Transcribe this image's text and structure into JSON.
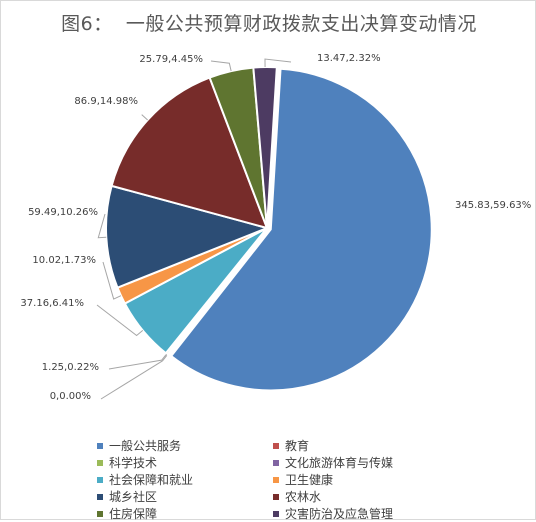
{
  "chart_data": {
    "type": "pie",
    "title": "图6：  一般公共预算财政拨款支出决算变动情况",
    "series": [
      {
        "name": "一般公共服务",
        "value": 345.83,
        "percent": "59.63%",
        "label": "345.83,59.63%",
        "color": "#4f81bd"
      },
      {
        "name": "教育",
        "value": 0,
        "percent": "0.00%",
        "label": "0,0.00%",
        "color": "#c0504d"
      },
      {
        "name": "科学技术",
        "value": 1.25,
        "percent": "0.22%",
        "label": "1.25,0.22%",
        "color": "#9bbb59"
      },
      {
        "name": "文化旅游体育与传媒",
        "value": 0,
        "percent": "0.00%",
        "label": "",
        "color": "#8064a2"
      },
      {
        "name": "社会保障和就业",
        "value": 37.16,
        "percent": "6.41%",
        "label": "37.16,6.41%",
        "color": "#4bacc6"
      },
      {
        "name": "卫生健康",
        "value": 10.02,
        "percent": "1.73%",
        "label": "10.02,1.73%",
        "color": "#f79646"
      },
      {
        "name": "城乡社区",
        "value": 59.49,
        "percent": "10.26%",
        "label": "59.49,10.26%",
        "color": "#2c4d75"
      },
      {
        "name": "农林水",
        "value": 86.9,
        "percent": "14.98%",
        "label": "86.9,14.98%",
        "color": "#772c2a"
      },
      {
        "name": "住房保障",
        "value": 25.79,
        "percent": "4.45%",
        "label": "25.79,4.45%",
        "color": "#5f7530"
      },
      {
        "name": "灾害防治及应急管理",
        "value": 13.47,
        "percent": "2.32%",
        "label": "13.47,2.32%",
        "color": "#4d3b62"
      }
    ],
    "legend_position": "bottom"
  }
}
